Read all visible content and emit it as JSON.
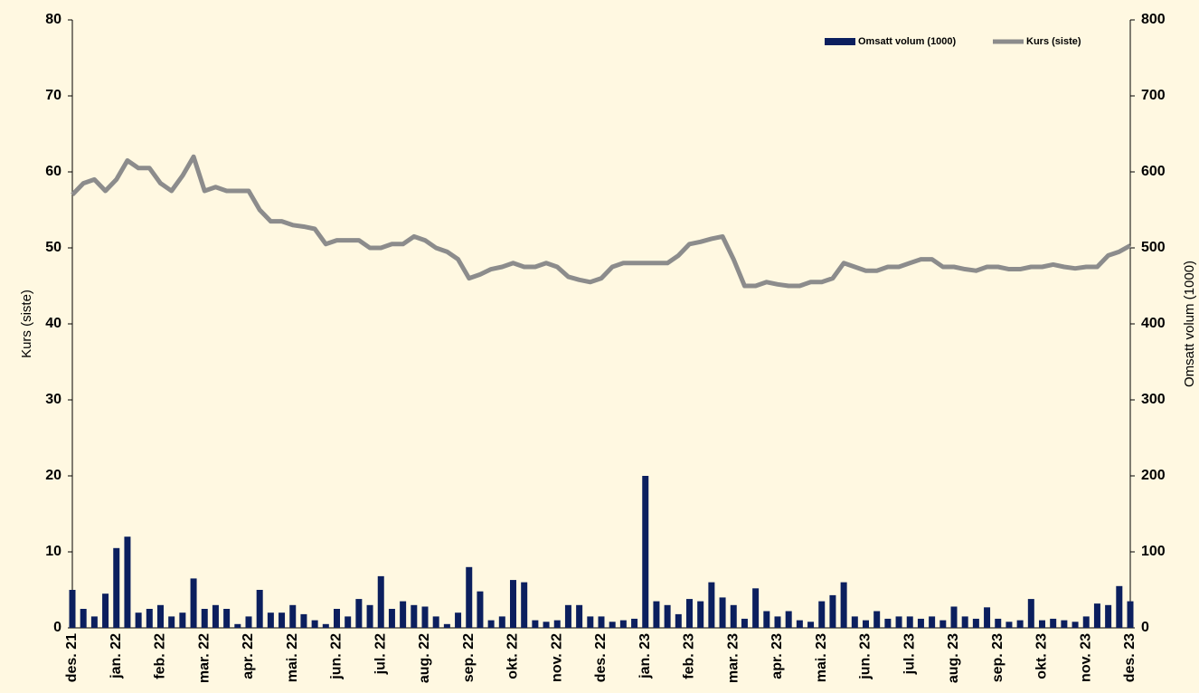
{
  "chart_data": {
    "type": "combo",
    "categories": [
      "des. 21",
      null,
      null,
      null,
      "jan. 22",
      null,
      null,
      null,
      "feb. 22",
      null,
      null,
      null,
      "mar. 22",
      null,
      null,
      null,
      "apr. 22",
      null,
      null,
      null,
      "mai. 22",
      null,
      null,
      null,
      "jun. 22",
      null,
      null,
      null,
      "jul. 22",
      null,
      null,
      null,
      "aug. 22",
      null,
      null,
      null,
      "sep. 22",
      null,
      null,
      null,
      "okt. 22",
      null,
      null,
      null,
      "nov. 22",
      null,
      null,
      null,
      "des. 22",
      null,
      null,
      null,
      "jan. 23",
      null,
      null,
      null,
      "feb. 23",
      null,
      null,
      null,
      "mar. 23",
      null,
      null,
      null,
      "apr. 23",
      null,
      null,
      null,
      "mai. 23",
      null,
      null,
      null,
      "jun. 23",
      null,
      null,
      null,
      "jul. 23",
      null,
      null,
      null,
      "aug. 23",
      null,
      null,
      null,
      "sep. 23",
      null,
      null,
      null,
      "okt. 23",
      null,
      null,
      null,
      "nov. 23",
      null,
      null,
      null,
      "des. 23"
    ],
    "series": [
      {
        "name": "Omsatt volum (1000)",
        "type": "bar",
        "axis": "y2",
        "color": "#0b1f5e",
        "values": [
          50,
          25,
          15,
          45,
          105,
          120,
          20,
          25,
          30,
          15,
          20,
          65,
          25,
          30,
          25,
          5,
          15,
          50,
          20,
          20,
          30,
          18,
          10,
          5,
          25,
          15,
          38,
          30,
          68,
          25,
          35,
          30,
          28,
          15,
          5,
          20,
          80,
          48,
          10,
          15,
          63,
          60,
          10,
          8,
          10,
          30,
          30,
          15,
          15,
          8,
          10,
          12,
          200,
          35,
          30,
          18,
          38,
          35,
          60,
          40,
          30,
          12,
          52,
          22,
          15,
          22,
          10,
          8,
          35,
          43,
          60,
          15,
          10,
          22,
          12,
          15,
          15,
          12,
          15,
          10,
          28,
          15,
          12,
          27,
          12,
          8,
          10,
          38,
          10,
          12,
          10,
          8,
          15,
          32,
          30,
          55,
          35
        ]
      },
      {
        "name": "Kurs (siste)",
        "type": "line",
        "axis": "y",
        "color": "#8c8c8c",
        "values": [
          57,
          58.5,
          59,
          57.5,
          59,
          61.5,
          60.5,
          60.5,
          58.5,
          57.5,
          59.5,
          62,
          57.5,
          58,
          57.5,
          57.5,
          57.5,
          55,
          53.5,
          53.5,
          53,
          52.8,
          52.5,
          50.5,
          51,
          51,
          51,
          50,
          50,
          50.5,
          50.5,
          51.5,
          51,
          50,
          49.5,
          48.5,
          46,
          46.5,
          47.2,
          47.5,
          48,
          47.5,
          47.5,
          48,
          47.5,
          46.2,
          45.8,
          45.5,
          46,
          47.5,
          48,
          48,
          48,
          48,
          48,
          49,
          50.5,
          50.8,
          51.2,
          51.5,
          48.5,
          45,
          45,
          45.5,
          45.2,
          45,
          45,
          45.5,
          45.5,
          46,
          48,
          47.5,
          47,
          47,
          47.5,
          47.5,
          48,
          48.5,
          48.5,
          47.5,
          47.5,
          47.2,
          47,
          47.5,
          47.5,
          47.2,
          47.2,
          47.5,
          47.5,
          47.8,
          47.5,
          47.3,
          47.5,
          47.5,
          49,
          49.5,
          50.3
        ]
      }
    ],
    "ylabel": "Kurs (siste)",
    "y2label": "Omsatt volum (1000)",
    "ylim": [
      0,
      80
    ],
    "yticks": [
      0,
      10,
      20,
      30,
      40,
      50,
      60,
      70,
      80
    ],
    "y2lim": [
      0,
      800
    ],
    "y2ticks": [
      0,
      100,
      200,
      300,
      400,
      500,
      600,
      700,
      800
    ],
    "legend": "upper right",
    "grid": false
  }
}
